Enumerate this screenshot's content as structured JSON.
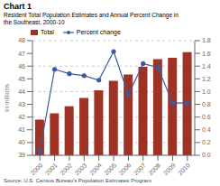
{
  "chart_data": {
    "type": "bar",
    "title": "Chart 1",
    "subtitle": [
      "Resident Total Population Estimates and Annual Percent Change in",
      "the Southeast, 2000-10"
    ],
    "source": "Source: U.S. Census Bureau's Population Estimates Program",
    "categories": [
      "2000",
      "2001",
      "2002",
      "2003",
      "2004",
      "2005",
      "2006",
      "2007",
      "2008",
      "2009",
      "2010"
    ],
    "series": [
      {
        "name": "Total",
        "type": "bar",
        "color": "#9e3325",
        "values": [
          41.8,
          42.3,
          42.85,
          43.5,
          44.1,
          44.85,
          45.35,
          45.95,
          46.55,
          46.65,
          47.1
        ]
      },
      {
        "name": "Percent change",
        "type": "line",
        "axis": "y2",
        "marker": "circle",
        "color": "#3a5a9e",
        "values": [
          0.06,
          1.35,
          1.28,
          1.25,
          1.18,
          1.63,
          0.95,
          1.44,
          1.38,
          0.82,
          0.82
        ]
      }
    ],
    "ylabel": "In millions",
    "ylim": [
      39,
      48
    ],
    "yticks": [
      39,
      40,
      41,
      42,
      43,
      44,
      45,
      46,
      47,
      48
    ],
    "y2lim": [
      0,
      1.8
    ],
    "y2ticks": [
      {
        "value": 0,
        "label": "0.0"
      },
      0.2,
      0.4,
      0.6,
      0.8,
      {
        "value": 1.0,
        "label": "1.0"
      },
      1.2,
      1.4,
      1.6,
      1.8
    ],
    "grid": true,
    "legend": "upper left"
  }
}
